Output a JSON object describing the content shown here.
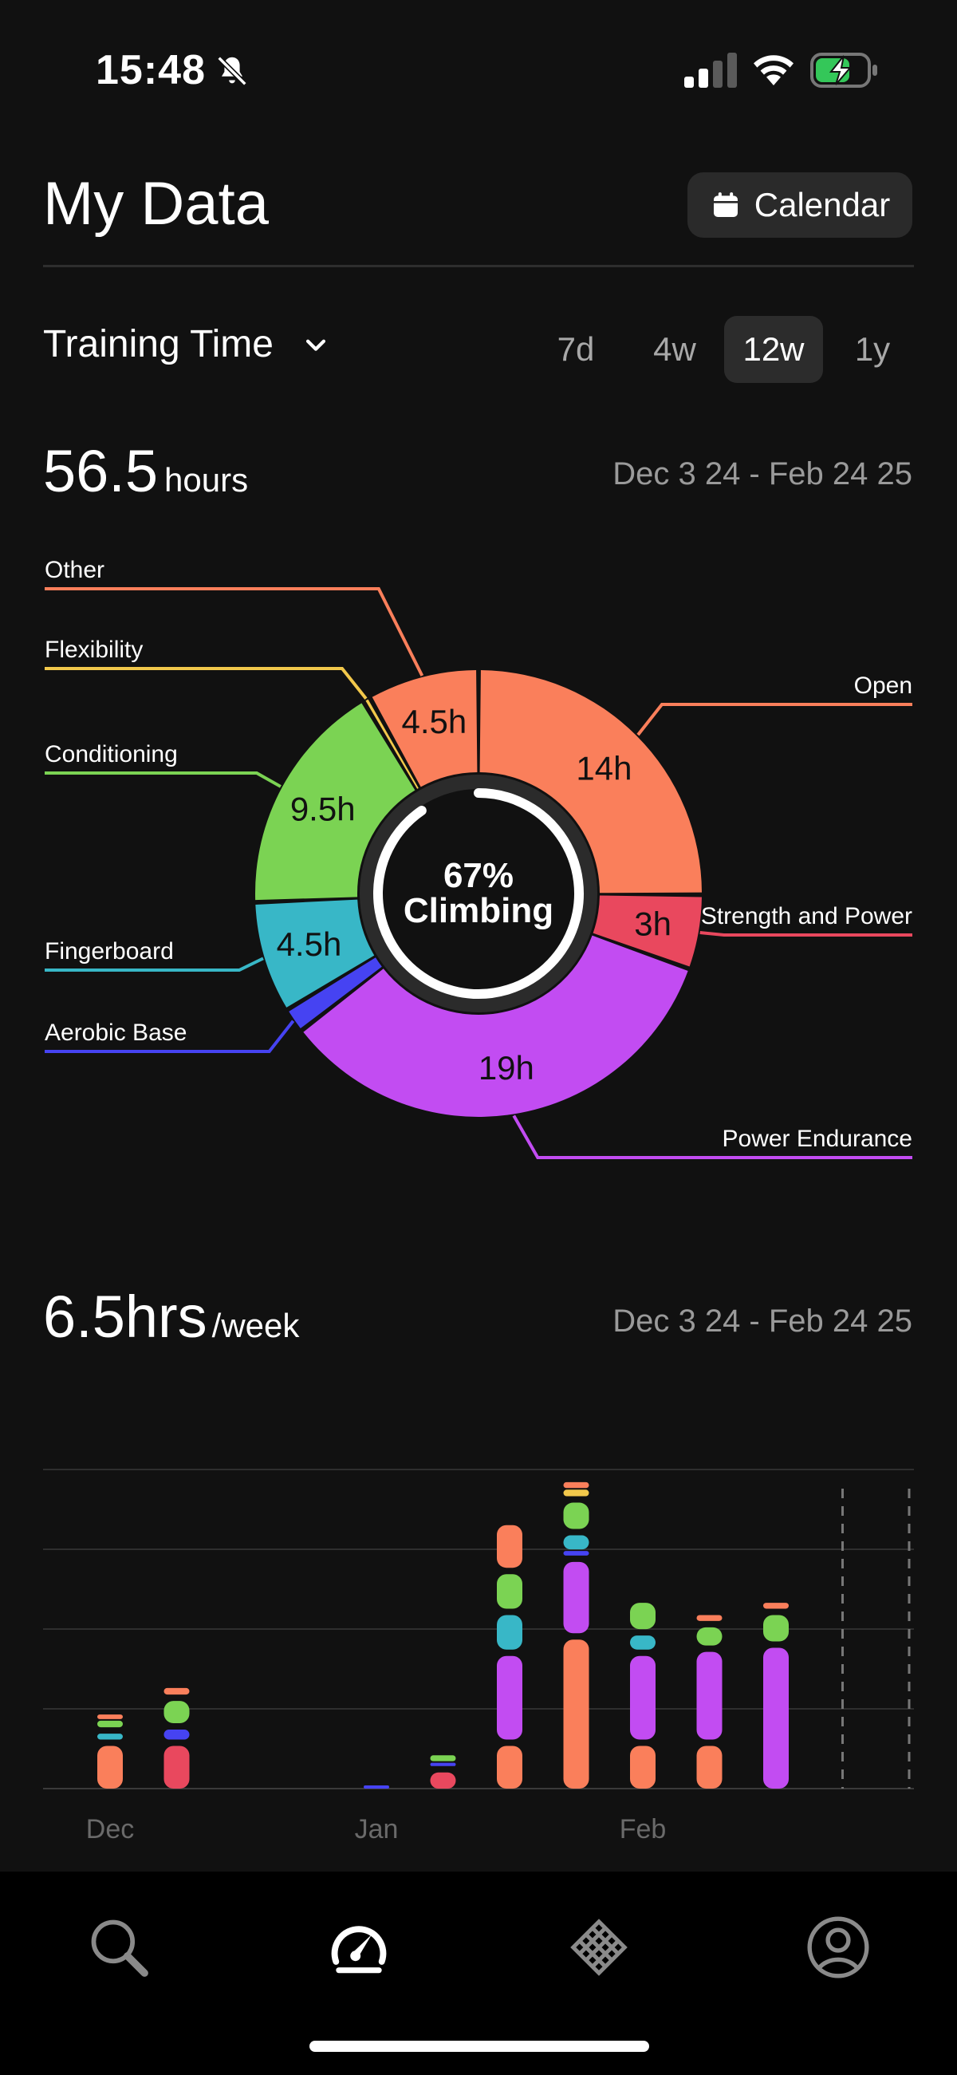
{
  "status_bar": {
    "time": "15:48"
  },
  "header": {
    "title": "My Data",
    "calendar_label": "Calendar"
  },
  "metric": {
    "selected": "Training Time"
  },
  "ranges": [
    {
      "label": "7d",
      "active": false
    },
    {
      "label": "4w",
      "active": false
    },
    {
      "label": "12w",
      "active": true
    },
    {
      "label": "1y",
      "active": false
    }
  ],
  "summary": {
    "total_value": "56.5",
    "total_unit": "hours",
    "date_range": "Dec 3 24 - Feb 24 25"
  },
  "donut": {
    "center_line1": "67%",
    "center_line2": "Climbing",
    "segments": [
      {
        "name": "Open",
        "value_label": "14h",
        "value": 14,
        "color": "#FA7F5B"
      },
      {
        "name": "Strength and Power",
        "value_label": "3h",
        "value": 3,
        "color": "#E9485E"
      },
      {
        "name": "Power Endurance",
        "value_label": "19h",
        "value": 19,
        "color": "#C24CF2"
      },
      {
        "name": "Aerobic Base",
        "value_label": "",
        "value": 1,
        "color": "#4643F2"
      },
      {
        "name": "Fingerboard",
        "value_label": "4.5h",
        "value": 4.5,
        "color": "#38B7C7"
      },
      {
        "name": "Conditioning",
        "value_label": "9.5h",
        "value": 9.5,
        "color": "#7BD353"
      },
      {
        "name": "Flexibility",
        "value_label": "",
        "value": 0.3,
        "color": "#F2C84B"
      },
      {
        "name": "Other",
        "value_label": "4.5h",
        "value": 4.5,
        "color": "#FA7F5B"
      }
    ]
  },
  "weekly": {
    "value": "6.5hrs",
    "unit": "/week",
    "date_range": "Dec 3 24 - Feb 24 25"
  },
  "chart_data": {
    "type": "bar",
    "stacked": true,
    "x_ticks": [
      "Dec",
      "Jan",
      "Feb"
    ],
    "weeks": [
      {
        "segments": [
          {
            "color": "#FA7F5B",
            "value": 1.2
          },
          {
            "color": "#38B7C7",
            "value": 0.3
          },
          {
            "color": "#7BD353",
            "value": 0.2
          },
          {
            "color": "#FA7F5B",
            "value": 0.15
          }
        ]
      },
      {
        "segments": [
          {
            "color": "#E9485E",
            "value": 1.2
          },
          {
            "color": "#4643F2",
            "value": 0.4
          },
          {
            "color": "#7BD353",
            "value": 0.7
          },
          {
            "color": "#FA7F5B",
            "value": 0.2
          }
        ]
      },
      {
        "segments": []
      },
      {
        "segments": []
      },
      {
        "segments": [
          {
            "color": "#4643F2",
            "value": 0.08
          }
        ]
      },
      {
        "segments": [
          {
            "color": "#E9485E",
            "value": 0.55
          },
          {
            "color": "#4643F2",
            "value": 0.12
          },
          {
            "color": "#7BD353",
            "value": 0.3
          }
        ]
      },
      {
        "segments": [
          {
            "color": "#FA7F5B",
            "value": 1.2
          },
          {
            "color": "#C24CF2",
            "value": 2.2
          },
          {
            "color": "#38B7C7",
            "value": 1.0
          },
          {
            "color": "#7BD353",
            "value": 1.0
          },
          {
            "color": "#FA7F5B",
            "value": 1.2
          }
        ]
      },
      {
        "segments": [
          {
            "color": "#FA7F5B",
            "value": 3.8
          },
          {
            "color": "#C24CF2",
            "value": 1.9
          },
          {
            "color": "#4643F2",
            "value": 0.15
          },
          {
            "color": "#38B7C7",
            "value": 0.5
          },
          {
            "color": "#7BD353",
            "value": 0.8
          },
          {
            "color": "#F2C84B",
            "value": 0.2
          },
          {
            "color": "#FA7F5B",
            "value": 0.3
          }
        ]
      },
      {
        "segments": [
          {
            "color": "#FA7F5B",
            "value": 1.2
          },
          {
            "color": "#C24CF2",
            "value": 2.2
          },
          {
            "color": "#38B7C7",
            "value": 0.5
          },
          {
            "color": "#7BD353",
            "value": 0.8
          }
        ]
      },
      {
        "segments": [
          {
            "color": "#FA7F5B",
            "value": 1.2
          },
          {
            "color": "#C24CF2",
            "value": 2.3
          },
          {
            "color": "#7BD353",
            "value": 0.6
          },
          {
            "color": "#FA7F5B",
            "value": 0.3
          }
        ]
      },
      {
        "segments": [
          {
            "color": "#C24CF2",
            "value": 3.6
          },
          {
            "color": "#7BD353",
            "value": 0.8
          },
          {
            "color": "#FA7F5B",
            "value": 0.3
          }
        ]
      },
      {
        "segments": [],
        "projected": true
      },
      {
        "segments": [],
        "projected": true
      }
    ],
    "ylim": [
      0,
      8
    ],
    "grid": true
  },
  "nav": [
    {
      "name": "search-icon",
      "active": false
    },
    {
      "name": "dashboard-icon",
      "active": true
    },
    {
      "name": "board-icon",
      "active": false
    },
    {
      "name": "profile-icon",
      "active": false
    }
  ]
}
